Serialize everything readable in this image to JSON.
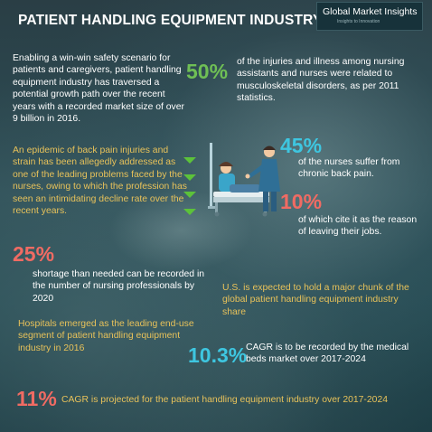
{
  "title": "PATIENT HANDLING EQUIPMENT INDUSTRY",
  "logo": {
    "name": "Global Market Insights",
    "tagline": "Insights to Innovation"
  },
  "intro": "Enabling a win-win safety scenario for patients and caregivers, patient handling equipment industry has traversed a potential growth path over the recent years with a recorded market size of over 9 billion in 2016.",
  "stat_50": {
    "value": "50%",
    "text": "of the injuries and illness among nursing assistants and nurses were related to musculoskeletal disorders, as per 2011 statistics."
  },
  "epidemic": "An epidemic of back pain injuries and strain has been allegedly addressed as one of the leading problems faced by the nurses, owing to which the profession has seen an intimidating decline rate over the recent years.",
  "stat_45": {
    "value": "45%",
    "text": "of the nurses suffer from chronic back pain."
  },
  "stat_10": {
    "value": "10%",
    "text": "of which cite it as the reason of leaving their jobs."
  },
  "stat_25": {
    "value": "25%",
    "text": "shortage than needed can be recorded in the number of nursing professionals by 2020"
  },
  "us_text": "U.S. is expected to hold a major chunk of the global patient handling equipment industry share",
  "hospitals": "Hospitals emerged as the leading end-use segment of patient handling equipment industry in 2016",
  "stat_103": {
    "value": "10.3%",
    "text": "CAGR is to be recorded by the medical beds market over 2017-2024"
  },
  "stat_11": {
    "value": "11%",
    "text": "CAGR is projected for the patient handling equipment industry over 2017-2024"
  },
  "colors": {
    "green": "#6fbf55",
    "cyan": "#3ec6e0",
    "red": "#f06b63",
    "yellow": "#e8c25a"
  },
  "icons": [
    "down-arrow-icon",
    "patient-bed-illustration"
  ]
}
